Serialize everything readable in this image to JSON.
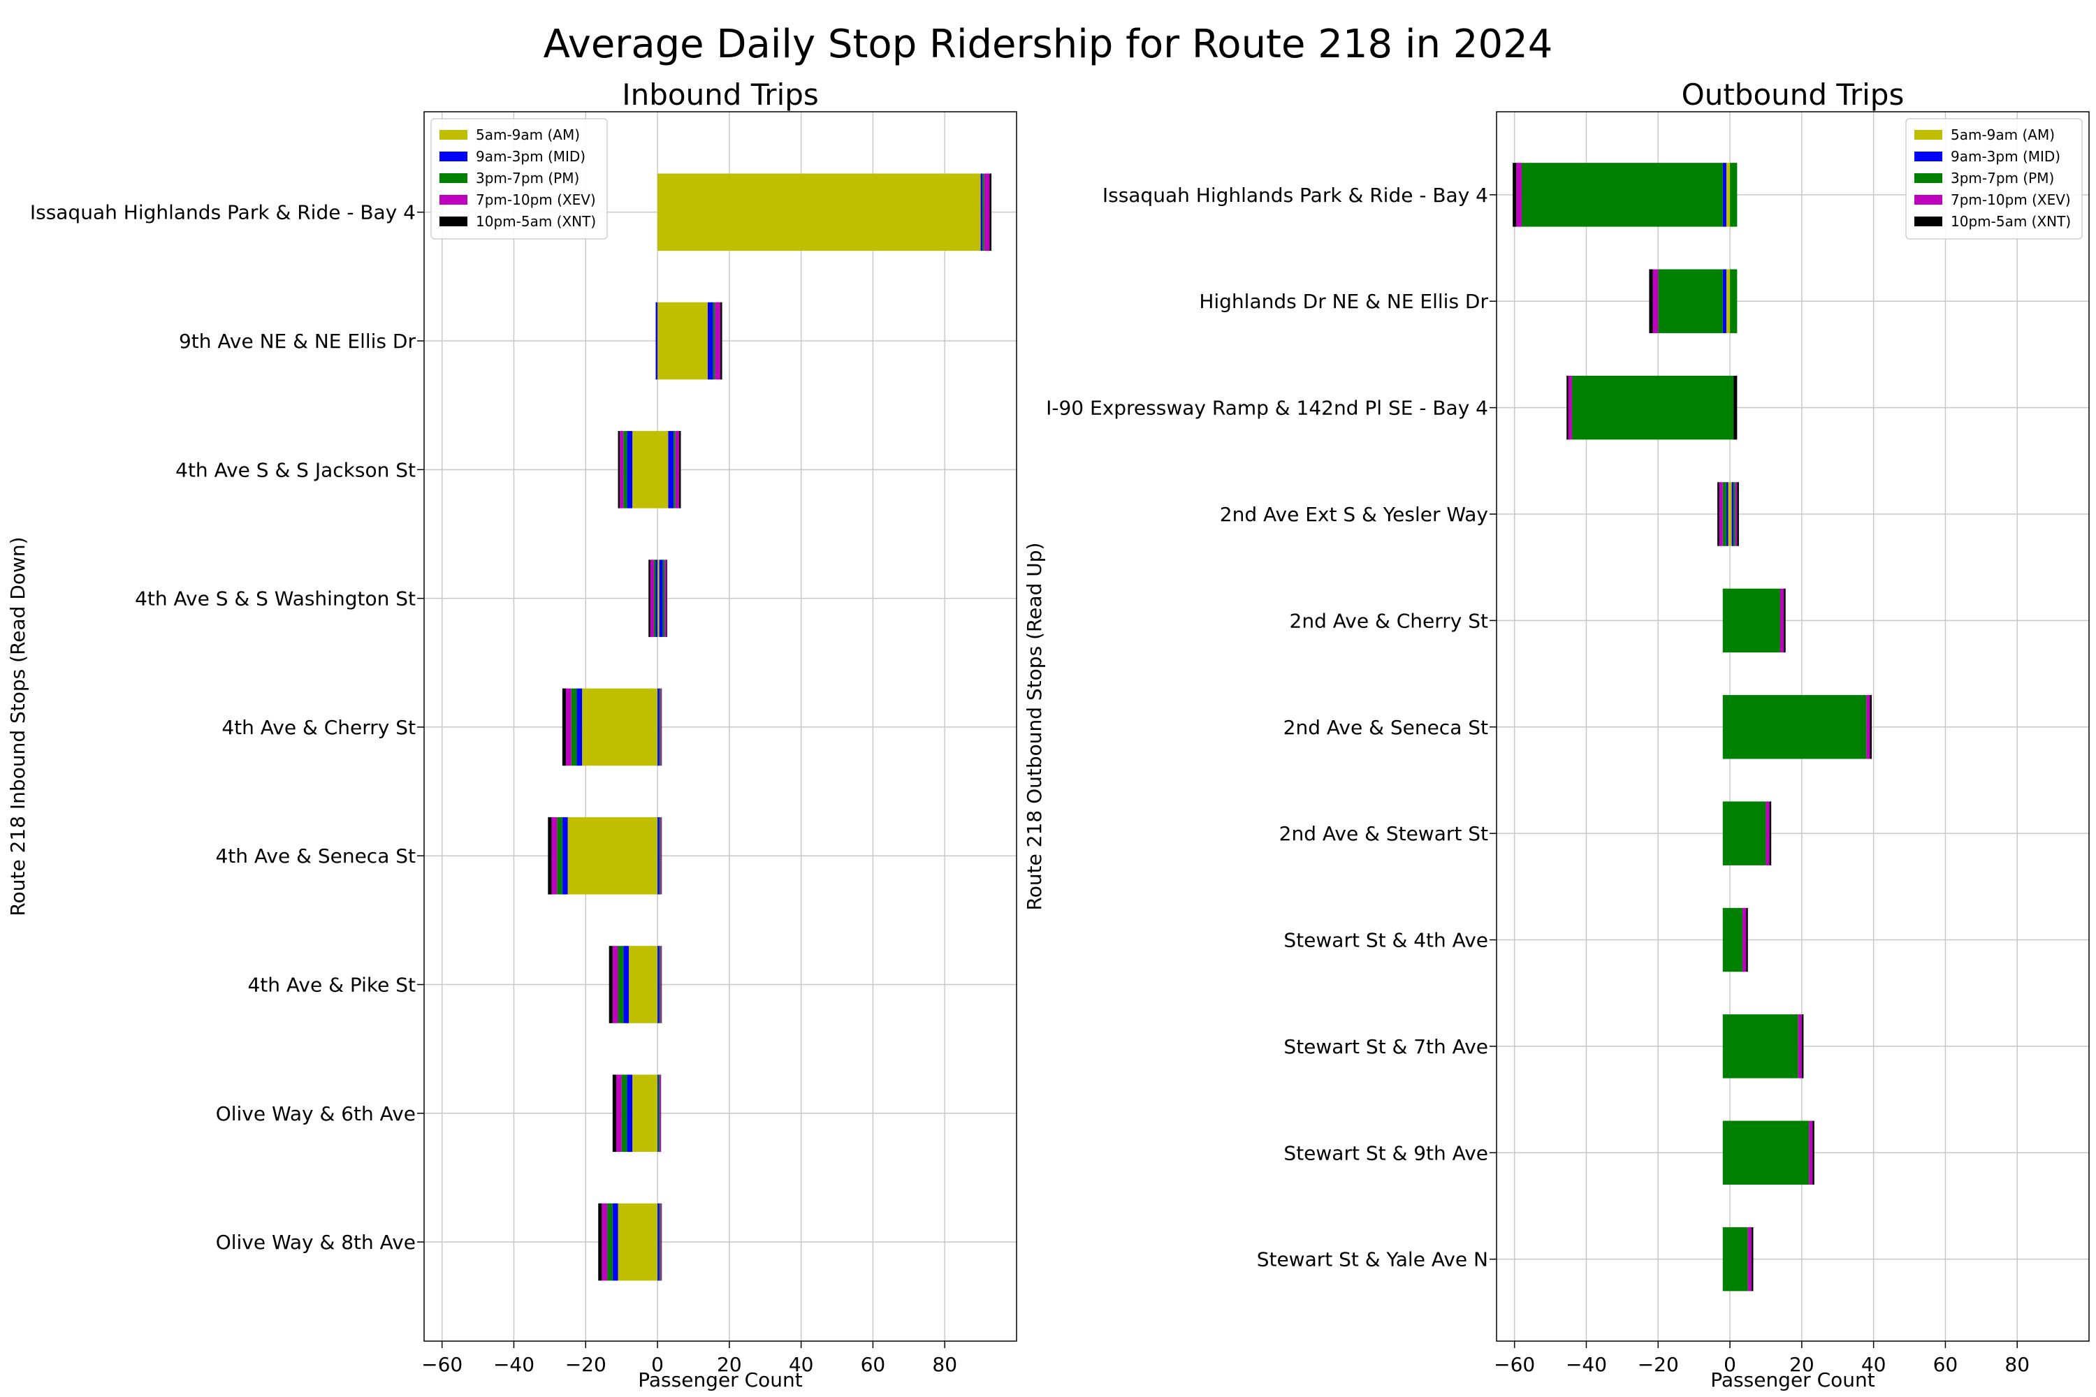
{
  "title": "Average Daily Stop Ridership for Route 218 in 2024",
  "legend_entries": [
    "5am-9am (AM)",
    "9am-3pm (MID)",
    "3pm-7pm (PM)",
    "7pm-10pm (XEV)",
    "10pm-5am (XNT)"
  ],
  "colors": {
    "AM": "#bfbf00",
    "MID": "#0000ff",
    "PM": "#008000",
    "XEV": "#bf00bf",
    "XNT": "#000000"
  },
  "chart_data": [
    {
      "type": "bar",
      "orientation": "horizontal",
      "stacked": "diverging",
      "title": "Inbound Trips",
      "xlabel": "Passenger Count",
      "ylabel": "Route 218 Inbound Stops (Read Down)",
      "xlim": [
        -65,
        100
      ],
      "xticks": [
        -60,
        -40,
        -20,
        0,
        20,
        40,
        60,
        80
      ],
      "grid": true,
      "legend_position": "top-left",
      "categories": [
        "Issaquah Highlands Park & Ride - Bay 4",
        "9th Ave NE & NE Ellis Dr",
        "4th Ave S & S Jackson St",
        "4th Ave S & S Washington St",
        "4th Ave & Cherry St",
        "4th Ave & Seneca St",
        "4th Ave & Pike St",
        "Olive Way & 6th Ave",
        "Olive Way & 8th Ave"
      ],
      "boardings": {
        "AM": [
          90,
          14,
          3,
          0.5,
          0,
          0,
          0,
          0,
          0
        ],
        "MID": [
          0.5,
          1.5,
          1.5,
          1.0,
          0.5,
          0.5,
          0.5,
          0.3,
          0.5
        ],
        "PM": [
          0.5,
          0.5,
          0.5,
          0.5,
          0.3,
          0.3,
          0.3,
          0.3,
          0.3
        ],
        "XEV": [
          1.5,
          1.5,
          1.0,
          0.5,
          0.3,
          0.3,
          0.3,
          0.3,
          0.3
        ],
        "XNT": [
          0.5,
          0.5,
          0.5,
          0.2,
          0.1,
          0.1,
          0.1,
          0.1,
          0.1
        ]
      },
      "alightings": {
        "AM": [
          0,
          0,
          -7,
          0,
          -21,
          -25,
          -8,
          -7,
          -11
        ],
        "MID": [
          0,
          -0.5,
          -1.5,
          -0.5,
          -1.5,
          -1.5,
          -1.5,
          -1.5,
          -1.5
        ],
        "PM": [
          0,
          0,
          -1.0,
          -0.5,
          -1.5,
          -1.5,
          -1.5,
          -1.5,
          -1.5
        ],
        "XEV": [
          0,
          0,
          -1.0,
          -1.0,
          -1.5,
          -1.5,
          -1.5,
          -1.5,
          -1.5
        ],
        "XNT": [
          0,
          0,
          -0.5,
          -0.5,
          -1.0,
          -1.0,
          -1.0,
          -1.0,
          -1.0
        ]
      }
    },
    {
      "type": "bar",
      "orientation": "horizontal",
      "stacked": "diverging",
      "title": "Outbound Trips",
      "xlabel": "Passenger Count",
      "ylabel": "Route 218 Outbound Stops (Read Up)",
      "xlim": [
        -65,
        100
      ],
      "xticks": [
        -60,
        -40,
        -20,
        0,
        20,
        40,
        60,
        80
      ],
      "grid": true,
      "legend_position": "top-right",
      "categories": [
        "Issaquah Highlands Park & Ride - Bay 4",
        "Highlands Dr NE & NE Ellis Dr",
        "I-90 Expressway Ramp & 142nd Pl SE - Bay 4",
        "2nd Ave Ext S & Yesler Way",
        "2nd Ave & Cherry St",
        "2nd Ave & Seneca St",
        "2nd Ave & Stewart St",
        "Stewart St & 4th Ave",
        "Stewart St & 7th Ave",
        "Stewart St & 9th Ave",
        "Stewart St & Yale Ave N"
      ],
      "boardings": {
        "AM": [
          0,
          0,
          0,
          0.5,
          0,
          0,
          0,
          0,
          0,
          0,
          0
        ],
        "MID": [
          0,
          0,
          0,
          0.5,
          0,
          0,
          0,
          0,
          0,
          0,
          0
        ],
        "PM": [
          2,
          2,
          1,
          0.5,
          14,
          38,
          10,
          3.5,
          19,
          22,
          5
        ],
        "XEV": [
          0,
          0,
          0,
          0.5,
          1.0,
          1.0,
          1.0,
          1.0,
          1.0,
          1.0,
          1.0
        ],
        "XNT": [
          0,
          0,
          1,
          0.5,
          0.5,
          0.5,
          0.5,
          0.5,
          0.5,
          0.5,
          0.5
        ]
      },
      "alightings": {
        "AM": [
          -1,
          -1,
          0,
          -0.5,
          0,
          0,
          0,
          0,
          0,
          0,
          0
        ],
        "MID": [
          -1,
          -1,
          0,
          -0.5,
          0,
          0,
          0,
          0,
          0,
          0,
          0
        ],
        "PM": [
          -56,
          -18,
          -44,
          -1.0,
          -2,
          -2,
          -2,
          -2,
          -2,
          -2,
          -2
        ],
        "XEV": [
          -1.5,
          -1.5,
          -1.0,
          -1.0,
          0,
          0,
          0,
          0,
          0,
          0,
          0
        ],
        "XNT": [
          -1.0,
          -1.0,
          -0.5,
          -0.5,
          0,
          0,
          0,
          0,
          0,
          0,
          0
        ]
      }
    }
  ]
}
